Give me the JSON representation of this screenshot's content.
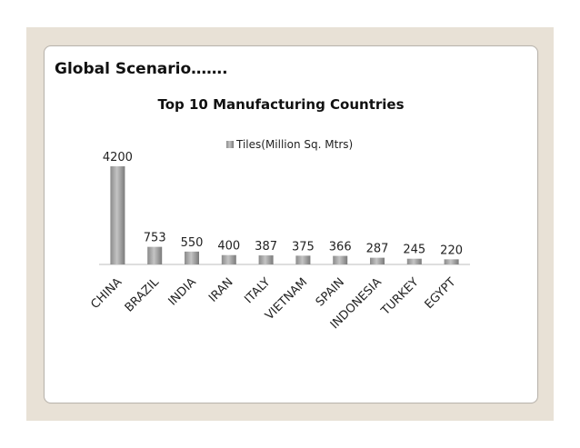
{
  "slide": {
    "heading": "Global Scenario……."
  },
  "chart_data": {
    "type": "bar",
    "title": "Top 10 Manufacturing Countries",
    "xlabel": "",
    "ylabel": "",
    "legend": "top-center",
    "grid": false,
    "categories": [
      "CHINA",
      "BRAZIL",
      "INDIA",
      "IRAN",
      "ITALY",
      "VIETNAM",
      "SPAIN",
      "INDONESIA",
      "TURKEY",
      "EGYPT"
    ],
    "series": [
      {
        "name": "Tiles(Million Sq. Mtrs)",
        "values": [
          4200,
          753,
          550,
          400,
          387,
          375,
          366,
          287,
          245,
          220
        ]
      }
    ],
    "ylim": [
      0,
      4200
    ],
    "colors": {
      "bar": "#a8a8a8",
      "bar_dark": "#7c7c7c",
      "axis": "#bdbdbd"
    }
  }
}
